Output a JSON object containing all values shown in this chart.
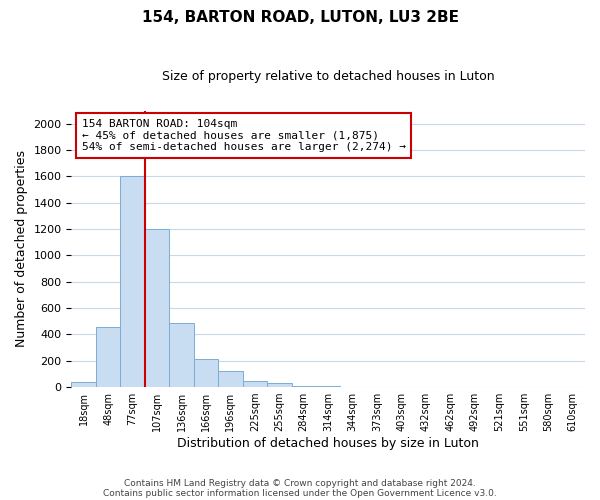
{
  "title": "154, BARTON ROAD, LUTON, LU3 2BE",
  "subtitle": "Size of property relative to detached houses in Luton",
  "xlabel": "Distribution of detached houses by size in Luton",
  "ylabel": "Number of detached properties",
  "bar_labels": [
    "18sqm",
    "48sqm",
    "77sqm",
    "107sqm",
    "136sqm",
    "166sqm",
    "196sqm",
    "225sqm",
    "255sqm",
    "284sqm",
    "314sqm",
    "344sqm",
    "373sqm",
    "403sqm",
    "432sqm",
    "462sqm",
    "492sqm",
    "521sqm",
    "551sqm",
    "580sqm",
    "610sqm"
  ],
  "bar_values": [
    35,
    460,
    1600,
    1200,
    490,
    210,
    120,
    45,
    30,
    10,
    10,
    0,
    0,
    0,
    0,
    0,
    0,
    0,
    0,
    0,
    0
  ],
  "bar_color": "#c9ddf2",
  "bar_edge_color": "#7aadd4",
  "vline_x_index": 3,
  "vline_color": "#cc0000",
  "annotation_text": "154 BARTON ROAD: 104sqm\n← 45% of detached houses are smaller (1,875)\n54% of semi-detached houses are larger (2,274) →",
  "annotation_box_color": "#ffffff",
  "annotation_box_edge": "#cc0000",
  "ylim": [
    0,
    2100
  ],
  "yticks": [
    0,
    200,
    400,
    600,
    800,
    1000,
    1200,
    1400,
    1600,
    1800,
    2000
  ],
  "footer_line1": "Contains HM Land Registry data © Crown copyright and database right 2024.",
  "footer_line2": "Contains public sector information licensed under the Open Government Licence v3.0.",
  "bg_color": "#ffffff",
  "grid_color": "#c8d8e8",
  "title_fontsize": 11,
  "subtitle_fontsize": 9,
  "xlabel_fontsize": 9,
  "ylabel_fontsize": 9,
  "tick_fontsize": 8,
  "xtick_fontsize": 7,
  "footer_fontsize": 6.5,
  "annotation_fontsize": 8
}
